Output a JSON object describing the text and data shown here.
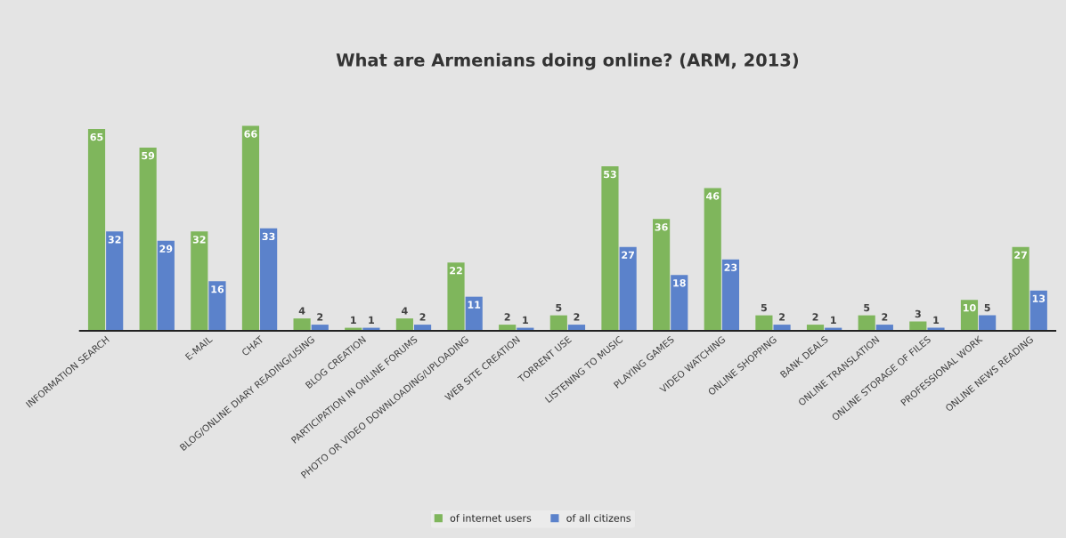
{
  "chart_data": {
    "type": "bar",
    "title": "What are Armenians doing online? (ARM, 2013)",
    "categories": [
      "INFORMATION SEARCH",
      null,
      "E-MAIL",
      "CHAT",
      "BLOG/ONLINE DIARY READING/USING",
      "BLOG CREATION",
      "PARTICIPATION IN ONLINE FORUMS",
      "PHOTO OR VIDEO DOWNLOADING/UPLOADING",
      "WEB SITE CREATION",
      "TORRENT USE",
      "LISTENING TO MUSIC",
      "PLAYING GAMES",
      "VIDEO WATCHING",
      "ONLINE SHOPPING",
      "BANK DEALS",
      "ONLINE TRANSLATION",
      "ONLINE STORAGE OF FILES",
      "PROFESSIONAL WORK",
      "ONLINE NEWS READING"
    ],
    "series": [
      {
        "name": "of internet users",
        "color": "#7fb65c",
        "values": [
          65,
          59,
          32,
          66,
          4,
          1,
          4,
          22,
          2,
          5,
          53,
          36,
          46,
          5,
          2,
          5,
          3,
          10,
          27
        ]
      },
      {
        "name": "of all citizens",
        "color": "#5b82cb",
        "values": [
          32,
          29,
          16,
          33,
          2,
          1,
          2,
          11,
          1,
          2,
          27,
          18,
          23,
          2,
          1,
          2,
          1,
          5,
          13
        ]
      }
    ],
    "data_labels": true,
    "legend": "bottom"
  }
}
